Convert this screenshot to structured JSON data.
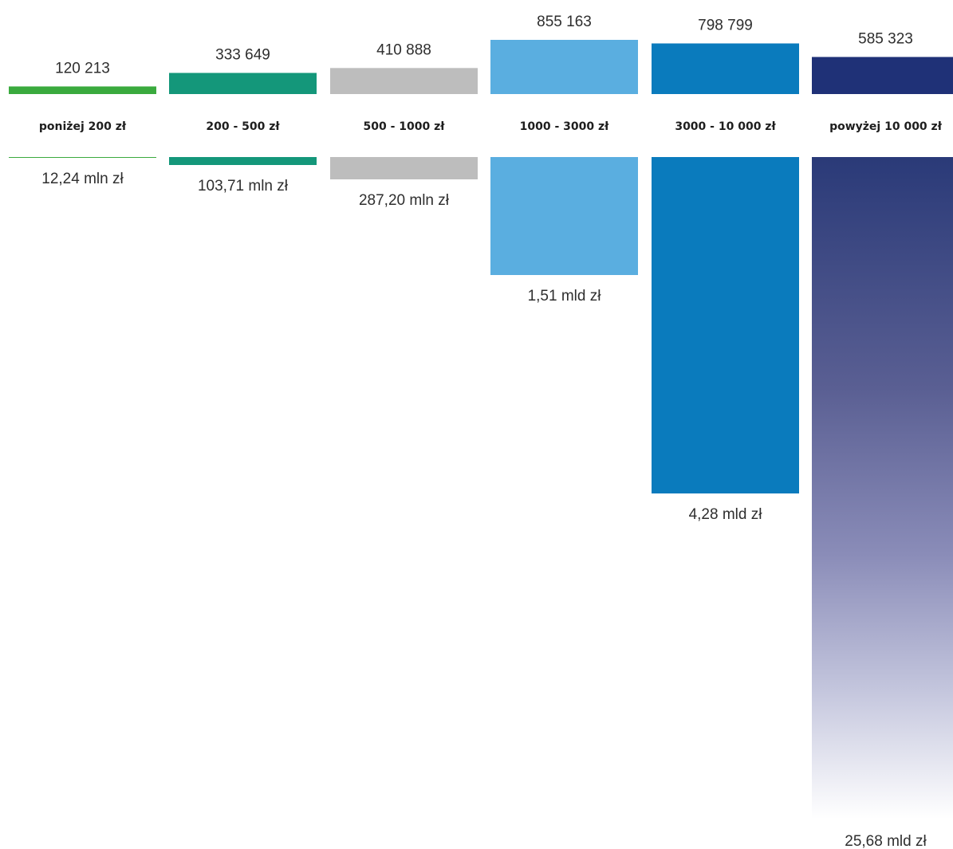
{
  "chart_data": {
    "type": "bar",
    "categories": [
      "poniżej 200 zł",
      "200 - 500 zł",
      "500 - 1000 zł",
      "1000 - 3000 zł",
      "3000 - 10 000 zł",
      "powyżej 10 000 zł"
    ],
    "series": [
      {
        "values": [
          120213,
          333649,
          410888,
          855163,
          798799,
          585323
        ],
        "data_labels": [
          "120 213",
          "333 649",
          "410 888",
          "855 163",
          "798 799",
          "585 323"
        ]
      },
      {
        "values": [
          12.24,
          103.71,
          287.2,
          1510,
          4280,
          25680
        ],
        "data_labels": [
          "12,24 mln zł",
          "103,71 mln zł",
          "287,20 mln zł",
          "1,51 mld zł",
          "4,28 mld zł",
          "25,68 mld zł"
        ]
      }
    ],
    "colors": [
      "#3aaa3e",
      "#14977a",
      "#bdbdbd",
      "#5aaee0",
      "#0a7bbd",
      "#1f3177"
    ]
  }
}
